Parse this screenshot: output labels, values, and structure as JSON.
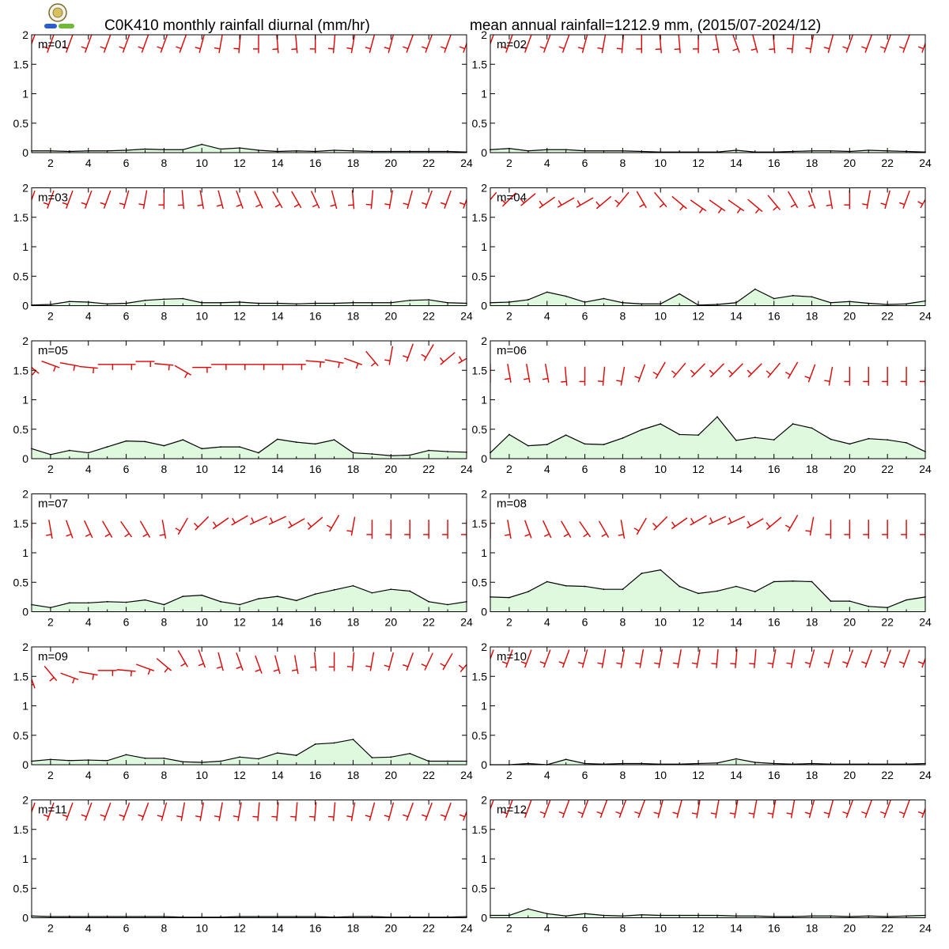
{
  "header": {
    "title_left": "C0K410 monthly rainfall diurnal (mm/hr)",
    "title_right": "mean annual rainfall=1212.9 mm, (2015/07-2024/12)"
  },
  "colors": {
    "area_fill": "#dff9df",
    "line": "#000000",
    "wind_barb": "#e00000",
    "axis": "#000000"
  },
  "chart_data": {
    "type": "area",
    "xlabel": "",
    "ylabel": "",
    "x": [
      1,
      2,
      3,
      4,
      5,
      6,
      7,
      8,
      9,
      10,
      11,
      12,
      13,
      14,
      15,
      16,
      17,
      18,
      19,
      20,
      21,
      22,
      23,
      24
    ],
    "x_ticks": [
      2,
      4,
      6,
      8,
      10,
      12,
      14,
      16,
      18,
      20,
      22,
      24
    ],
    "y_ticks": [
      "0",
      "0.5",
      "1",
      "1.5",
      "2"
    ],
    "ylim": [
      0,
      2
    ],
    "xlim": [
      1,
      24
    ],
    "panels": [
      {
        "label": "m=01",
        "values": [
          0.03,
          0.03,
          0.02,
          0.03,
          0.03,
          0.04,
          0.06,
          0.05,
          0.05,
          0.14,
          0.06,
          0.08,
          0.04,
          0.02,
          0.03,
          0.02,
          0.04,
          0.03,
          0.02,
          0.02,
          0.02,
          0.02,
          0.02,
          0.01
        ]
      },
      {
        "label": "m=02",
        "values": [
          0.05,
          0.07,
          0.03,
          0.05,
          0.05,
          0.03,
          0.03,
          0.03,
          0.02,
          0.01,
          0.01,
          0.01,
          0.01,
          0.04,
          0.01,
          0.01,
          0.02,
          0.03,
          0.03,
          0.02,
          0.04,
          0.03,
          0.02,
          0.01
        ]
      },
      {
        "label": "m=03",
        "values": [
          0.01,
          0.02,
          0.07,
          0.06,
          0.03,
          0.04,
          0.09,
          0.11,
          0.12,
          0.05,
          0.05,
          0.06,
          0.04,
          0.04,
          0.03,
          0.04,
          0.04,
          0.05,
          0.05,
          0.05,
          0.09,
          0.1,
          0.05,
          0.04
        ]
      },
      {
        "label": "m=04",
        "values": [
          0.05,
          0.06,
          0.1,
          0.23,
          0.16,
          0.06,
          0.12,
          0.05,
          0.03,
          0.03,
          0.2,
          0.01,
          0.02,
          0.05,
          0.28,
          0.12,
          0.17,
          0.15,
          0.05,
          0.07,
          0.04,
          0.02,
          0.03,
          0.08
        ]
      },
      {
        "label": "m=05",
        "values": [
          0.17,
          0.07,
          0.14,
          0.1,
          0.2,
          0.3,
          0.29,
          0.22,
          0.32,
          0.17,
          0.2,
          0.2,
          0.1,
          0.33,
          0.28,
          0.25,
          0.32,
          0.1,
          0.08,
          0.05,
          0.06,
          0.14,
          0.12,
          0.11
        ]
      },
      {
        "label": "m=06",
        "values": [
          0.1,
          0.41,
          0.22,
          0.24,
          0.4,
          0.25,
          0.24,
          0.35,
          0.49,
          0.59,
          0.41,
          0.4,
          0.71,
          0.31,
          0.36,
          0.32,
          0.59,
          0.52,
          0.33,
          0.25,
          0.34,
          0.32,
          0.27,
          0.12
        ]
      },
      {
        "label": "m=07",
        "values": [
          0.12,
          0.07,
          0.15,
          0.15,
          0.17,
          0.16,
          0.2,
          0.12,
          0.26,
          0.28,
          0.17,
          0.12,
          0.22,
          0.26,
          0.19,
          0.3,
          0.37,
          0.44,
          0.32,
          0.38,
          0.35,
          0.17,
          0.12,
          0.17
        ]
      },
      {
        "label": "m=08",
        "values": [
          0.25,
          0.24,
          0.34,
          0.51,
          0.44,
          0.43,
          0.38,
          0.38,
          0.65,
          0.71,
          0.43,
          0.31,
          0.35,
          0.43,
          0.34,
          0.51,
          0.52,
          0.51,
          0.18,
          0.18,
          0.09,
          0.07,
          0.2,
          0.25
        ]
      },
      {
        "label": "m=09",
        "values": [
          0.06,
          0.09,
          0.07,
          0.08,
          0.07,
          0.17,
          0.11,
          0.11,
          0.05,
          0.04,
          0.06,
          0.13,
          0.1,
          0.2,
          0.16,
          0.35,
          0.37,
          0.43,
          0.12,
          0.13,
          0.19,
          0.06,
          0.06,
          0.06
        ]
      },
      {
        "label": "m=10",
        "values": [
          0.0,
          0.0,
          0.02,
          0.0,
          0.09,
          0.02,
          0.01,
          0.02,
          0.02,
          0.01,
          0.01,
          0.02,
          0.03,
          0.1,
          0.04,
          0.02,
          0.01,
          0.02,
          0.01,
          0.01,
          0.01,
          0.01,
          0.01,
          0.02
        ]
      },
      {
        "label": "m=11",
        "values": [
          0.03,
          0.02,
          0.02,
          0.02,
          0.02,
          0.02,
          0.02,
          0.02,
          0.01,
          0.01,
          0.01,
          0.02,
          0.02,
          0.02,
          0.02,
          0.02,
          0.01,
          0.02,
          0.02,
          0.01,
          0.01,
          0.01,
          0.01,
          0.02
        ]
      },
      {
        "label": "m=12",
        "values": [
          0.04,
          0.04,
          0.15,
          0.07,
          0.03,
          0.07,
          0.04,
          0.03,
          0.05,
          0.04,
          0.04,
          0.04,
          0.04,
          0.03,
          0.03,
          0.02,
          0.02,
          0.03,
          0.03,
          0.02,
          0.03,
          0.02,
          0.03,
          0.04
        ]
      }
    ],
    "wind_barbs": [
      {
        "label": "m=01",
        "y": [
          1.85,
          1.85,
          1.85,
          1.85,
          1.85,
          1.85,
          1.85,
          1.85,
          1.85,
          1.85,
          1.85,
          1.85,
          1.85,
          1.85,
          1.85,
          1.85,
          1.85,
          1.85,
          1.85,
          1.85,
          1.85,
          1.85,
          1.85,
          1.85
        ],
        "dir": [
          200,
          200,
          200,
          200,
          200,
          200,
          200,
          200,
          200,
          195,
          190,
          185,
          180,
          175,
          175,
          180,
          185,
          190,
          195,
          195,
          200,
          200,
          200,
          200
        ]
      },
      {
        "label": "m=02",
        "y": [
          1.85,
          1.85,
          1.85,
          1.85,
          1.85,
          1.85,
          1.85,
          1.85,
          1.85,
          1.85,
          1.85,
          1.85,
          1.85,
          1.85,
          1.85,
          1.85,
          1.85,
          1.85,
          1.85,
          1.85,
          1.85,
          1.85,
          1.85,
          1.85
        ],
        "dir": [
          200,
          200,
          200,
          200,
          200,
          195,
          190,
          185,
          180,
          175,
          175,
          180,
          170,
          160,
          165,
          175,
          185,
          190,
          195,
          200,
          200,
          200,
          200,
          200
        ]
      },
      {
        "label": "m=03",
        "y": [
          1.8,
          1.8,
          1.8,
          1.8,
          1.8,
          1.8,
          1.8,
          1.8,
          1.8,
          1.8,
          1.8,
          1.8,
          1.8,
          1.8,
          1.8,
          1.8,
          1.8,
          1.8,
          1.8,
          1.8,
          1.8,
          1.8,
          1.8,
          1.8
        ],
        "dir": [
          200,
          200,
          200,
          200,
          200,
          195,
          190,
          180,
          175,
          170,
          165,
          160,
          155,
          150,
          150,
          155,
          165,
          175,
          185,
          190,
          195,
          200,
          200,
          200
        ]
      },
      {
        "label": "m=04",
        "y": [
          1.8,
          1.8,
          1.8,
          1.75,
          1.75,
          1.75,
          1.75,
          1.8,
          1.8,
          1.8,
          1.75,
          1.7,
          1.7,
          1.7,
          1.7,
          1.75,
          1.8,
          1.8,
          1.8,
          1.8,
          1.8,
          1.8,
          1.8,
          1.8
        ],
        "dir": [
          220,
          225,
          230,
          235,
          240,
          240,
          230,
          220,
          150,
          140,
          130,
          125,
          125,
          125,
          130,
          140,
          150,
          160,
          170,
          180,
          190,
          195,
          200,
          210
        ]
      },
      {
        "label": "m=05",
        "y": [
          1.55,
          1.6,
          1.6,
          1.55,
          1.6,
          1.6,
          1.65,
          1.6,
          1.5,
          1.55,
          1.6,
          1.6,
          1.6,
          1.6,
          1.6,
          1.65,
          1.65,
          1.65,
          1.7,
          1.75,
          1.8,
          1.8,
          1.7,
          1.7
        ],
        "dir": [
          130,
          110,
          100,
          95,
          90,
          90,
          90,
          95,
          120,
          90,
          90,
          90,
          90,
          90,
          90,
          95,
          100,
          110,
          140,
          190,
          200,
          210,
          230,
          240
        ]
      },
      {
        "label": "m=06",
        "y": [
          1.45,
          1.45,
          1.45,
          1.45,
          1.4,
          1.4,
          1.4,
          1.4,
          1.45,
          1.5,
          1.5,
          1.5,
          1.5,
          1.5,
          1.5,
          1.5,
          1.5,
          1.45,
          1.4,
          1.4,
          1.4,
          1.4,
          1.4,
          1.4
        ],
        "dir": [
          180,
          170,
          170,
          170,
          175,
          180,
          185,
          190,
          200,
          210,
          220,
          225,
          225,
          225,
          225,
          220,
          210,
          200,
          190,
          180,
          180,
          180,
          180,
          180
        ]
      },
      {
        "label": "m=07",
        "y": [
          1.4,
          1.4,
          1.4,
          1.4,
          1.4,
          1.4,
          1.4,
          1.4,
          1.45,
          1.5,
          1.5,
          1.55,
          1.55,
          1.55,
          1.5,
          1.5,
          1.5,
          1.45,
          1.4,
          1.4,
          1.4,
          1.4,
          1.4,
          1.4
        ],
        "dir": [
          180,
          170,
          160,
          155,
          150,
          145,
          150,
          170,
          210,
          225,
          235,
          240,
          245,
          245,
          240,
          230,
          210,
          190,
          180,
          180,
          180,
          180,
          180,
          180
        ]
      },
      {
        "label": "m=08",
        "y": [
          1.4,
          1.4,
          1.4,
          1.4,
          1.4,
          1.4,
          1.4,
          1.4,
          1.45,
          1.5,
          1.5,
          1.55,
          1.55,
          1.55,
          1.5,
          1.5,
          1.5,
          1.45,
          1.4,
          1.4,
          1.4,
          1.4,
          1.4,
          1.4
        ],
        "dir": [
          180,
          170,
          160,
          155,
          150,
          145,
          150,
          170,
          210,
          225,
          235,
          240,
          245,
          245,
          240,
          230,
          210,
          190,
          180,
          180,
          180,
          180,
          180,
          180
        ]
      },
      {
        "label": "m=09",
        "y": [
          1.45,
          1.55,
          1.5,
          1.55,
          1.6,
          1.6,
          1.65,
          1.7,
          1.8,
          1.8,
          1.75,
          1.75,
          1.7,
          1.7,
          1.7,
          1.75,
          1.75,
          1.75,
          1.75,
          1.75,
          1.75,
          1.75,
          1.75,
          1.7
        ],
        "dir": [
          160,
          140,
          110,
          100,
          90,
          95,
          110,
          130,
          150,
          160,
          165,
          160,
          160,
          165,
          170,
          175,
          180,
          185,
          190,
          195,
          200,
          205,
          210,
          220
        ]
      },
      {
        "label": "m=10",
        "y": [
          1.8,
          1.8,
          1.8,
          1.8,
          1.8,
          1.8,
          1.8,
          1.8,
          1.8,
          1.8,
          1.8,
          1.8,
          1.8,
          1.8,
          1.8,
          1.8,
          1.8,
          1.8,
          1.8,
          1.8,
          1.8,
          1.8,
          1.8,
          1.8
        ],
        "dir": [
          200,
          200,
          200,
          200,
          200,
          195,
          190,
          190,
          190,
          190,
          190,
          190,
          185,
          185,
          185,
          190,
          190,
          195,
          195,
          200,
          200,
          200,
          200,
          200
        ]
      },
      {
        "label": "m=11",
        "y": [
          1.8,
          1.8,
          1.8,
          1.8,
          1.8,
          1.8,
          1.8,
          1.8,
          1.8,
          1.8,
          1.8,
          1.8,
          1.8,
          1.8,
          1.8,
          1.8,
          1.8,
          1.8,
          1.8,
          1.8,
          1.8,
          1.8,
          1.8,
          1.8
        ],
        "dir": [
          200,
          200,
          200,
          200,
          200,
          200,
          200,
          195,
          190,
          190,
          190,
          190,
          185,
          185,
          185,
          185,
          185,
          190,
          195,
          195,
          200,
          200,
          200,
          200
        ]
      },
      {
        "label": "m=12",
        "y": [
          1.85,
          1.85,
          1.85,
          1.85,
          1.85,
          1.85,
          1.85,
          1.85,
          1.85,
          1.85,
          1.85,
          1.85,
          1.85,
          1.85,
          1.85,
          1.85,
          1.85,
          1.85,
          1.85,
          1.85,
          1.85,
          1.85,
          1.85,
          1.85
        ],
        "dir": [
          200,
          200,
          200,
          200,
          200,
          200,
          200,
          200,
          200,
          195,
          195,
          190,
          190,
          190,
          190,
          190,
          190,
          195,
          195,
          200,
          200,
          200,
          200,
          200
        ]
      }
    ]
  }
}
